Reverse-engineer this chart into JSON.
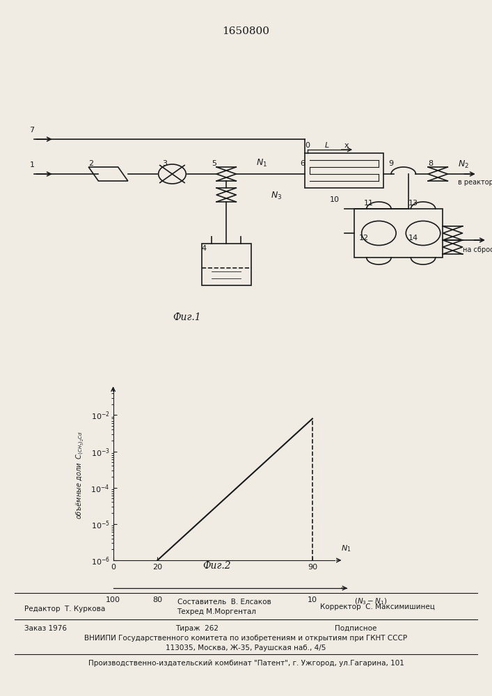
{
  "title_number": "1650800",
  "fig1_caption": "Фиг.1",
  "fig2_caption": "Фиг.2",
  "background_color": "#f0ece4",
  "line_color": "#1a1a1a",
  "footer": {
    "editor": "Редактор  Т. Куркова",
    "composer": "Составитель  В. Елсаков",
    "techred": "Техред М.Моргентал",
    "corrector": "Корректор  С. Максимишинец",
    "order": "Заказ 1976",
    "tirazh": "Тираж  262",
    "podpisnoe": "Подписное",
    "vniip1": "ВНИИПИ Государственного комитета по изобретениям и открытиям при ГКНТ СССР",
    "vniip2": "113035, Москва, Ж-35, Раушская наб., 4/5",
    "patent": "Производственно-издательский комбинат \"Патент\", г. Ужгород, ул.Гагарина, 101"
  }
}
